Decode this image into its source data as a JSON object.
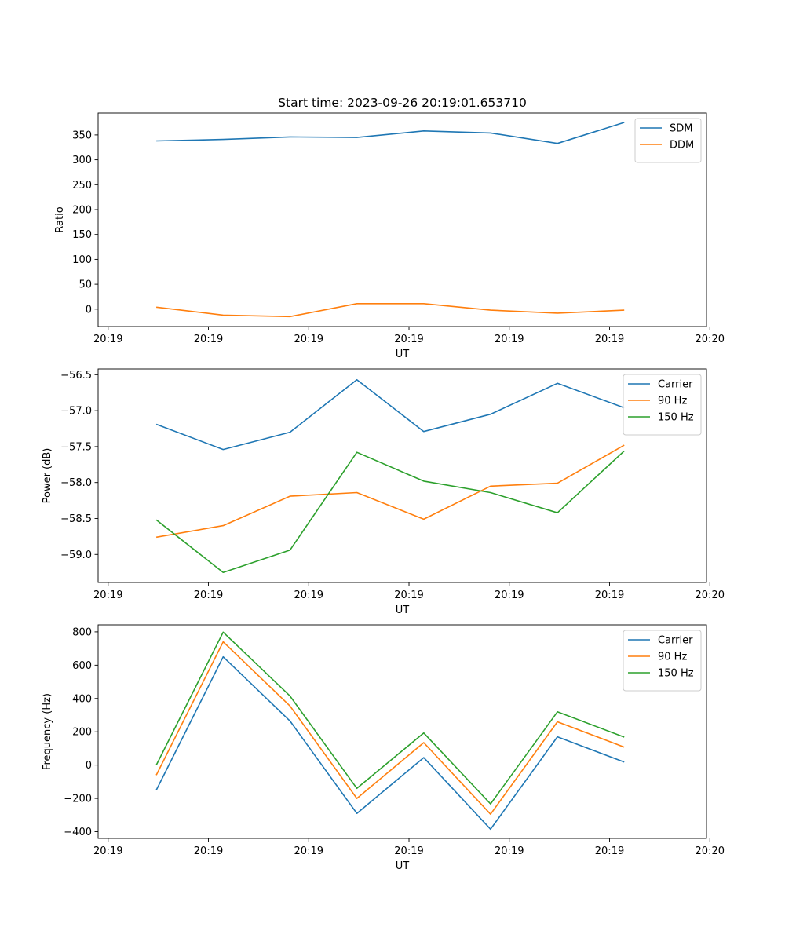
{
  "figure_title": "Start time: 2023-09-26 20:19:01.653710",
  "chart_data": [
    {
      "type": "line",
      "title": "Start time: 2023-09-26 20:19:01.653710",
      "xlabel": "UT",
      "ylabel": "Ratio",
      "xlim": [
        -0.65,
        8.45
      ],
      "ylim": [
        -35,
        394
      ],
      "xticks": [
        -0.5,
        1,
        2.5,
        4,
        5.5,
        7,
        8.5
      ],
      "xtick_labels": [
        "20:19",
        "20:19",
        "20:19",
        "20:19",
        "20:19",
        "20:19",
        "20:20"
      ],
      "yticks": [
        0,
        50,
        100,
        150,
        200,
        250,
        300,
        350
      ],
      "ytick_labels": [
        "0",
        "50",
        "100",
        "150",
        "200",
        "250",
        "300",
        "350"
      ],
      "x": [
        0.22,
        1.22,
        2.22,
        3.22,
        4.22,
        5.22,
        6.22,
        7.22
      ],
      "legend": "top-right",
      "series": [
        {
          "name": "SDM",
          "color": "#1f77b4",
          "values": [
            338,
            341,
            346,
            345,
            358,
            354,
            333,
            375
          ]
        },
        {
          "name": "DDM",
          "color": "#ff7f0e",
          "values": [
            4,
            -12,
            -15,
            11,
            11,
            -2,
            -8,
            -2
          ]
        }
      ]
    },
    {
      "type": "line",
      "title": "",
      "xlabel": "UT",
      "ylabel": "Power (dB)",
      "xlim": [
        -0.65,
        8.45
      ],
      "ylim": [
        -59.39,
        -56.42
      ],
      "xticks": [
        -0.5,
        1,
        2.5,
        4,
        5.5,
        7,
        8.5
      ],
      "xtick_labels": [
        "20:19",
        "20:19",
        "20:19",
        "20:19",
        "20:19",
        "20:19",
        "20:20"
      ],
      "yticks": [
        -59.0,
        -58.5,
        -58.0,
        -57.5,
        -57.0,
        -56.5
      ],
      "ytick_labels": [
        "−59.0",
        "−58.5",
        "−58.0",
        "−57.5",
        "−57.0",
        "−56.5"
      ],
      "x": [
        0.22,
        1.22,
        2.22,
        3.22,
        4.22,
        5.22,
        6.22,
        7.22
      ],
      "legend": "top-right",
      "series": [
        {
          "name": "Carrier",
          "color": "#1f77b4",
          "values": [
            -57.19,
            -57.54,
            -57.3,
            -56.57,
            -57.29,
            -57.05,
            -56.62,
            -56.96
          ]
        },
        {
          "name": "90 Hz",
          "color": "#ff7f0e",
          "values": [
            -58.76,
            -58.6,
            -58.19,
            -58.14,
            -58.51,
            -58.05,
            -58.01,
            -57.48
          ]
        },
        {
          "name": "150 Hz",
          "color": "#2ca02c",
          "values": [
            -58.52,
            -59.25,
            -58.94,
            -57.58,
            -57.98,
            -58.14,
            -58.42,
            -57.56
          ]
        }
      ]
    },
    {
      "type": "line",
      "title": "",
      "xlabel": "UT",
      "ylabel": "Frequency (Hz)",
      "xlim": [
        -0.65,
        8.45
      ],
      "ylim": [
        -440,
        842
      ],
      "xticks": [
        -0.5,
        1,
        2.5,
        4,
        5.5,
        7,
        8.5
      ],
      "xtick_labels": [
        "20:19",
        "20:19",
        "20:19",
        "20:19",
        "20:19",
        "20:19",
        "20:20"
      ],
      "yticks": [
        -400,
        -200,
        0,
        200,
        400,
        600,
        800
      ],
      "ytick_labels": [
        "−400",
        "−200",
        "0",
        "200",
        "400",
        "600",
        "800"
      ],
      "x": [
        0.22,
        1.22,
        2.22,
        3.22,
        4.22,
        5.22,
        6.22,
        7.22
      ],
      "legend": "top-right",
      "series": [
        {
          "name": "Carrier",
          "color": "#1f77b4",
          "values": [
            -150,
            650,
            265,
            -290,
            45,
            -385,
            170,
            18
          ]
        },
        {
          "name": "90 Hz",
          "color": "#ff7f0e",
          "values": [
            -60,
            740,
            355,
            -200,
            135,
            -295,
            260,
            108
          ]
        },
        {
          "name": "150 Hz",
          "color": "#2ca02c",
          "values": [
            0,
            798,
            415,
            -140,
            193,
            -233,
            320,
            168
          ]
        }
      ]
    }
  ]
}
